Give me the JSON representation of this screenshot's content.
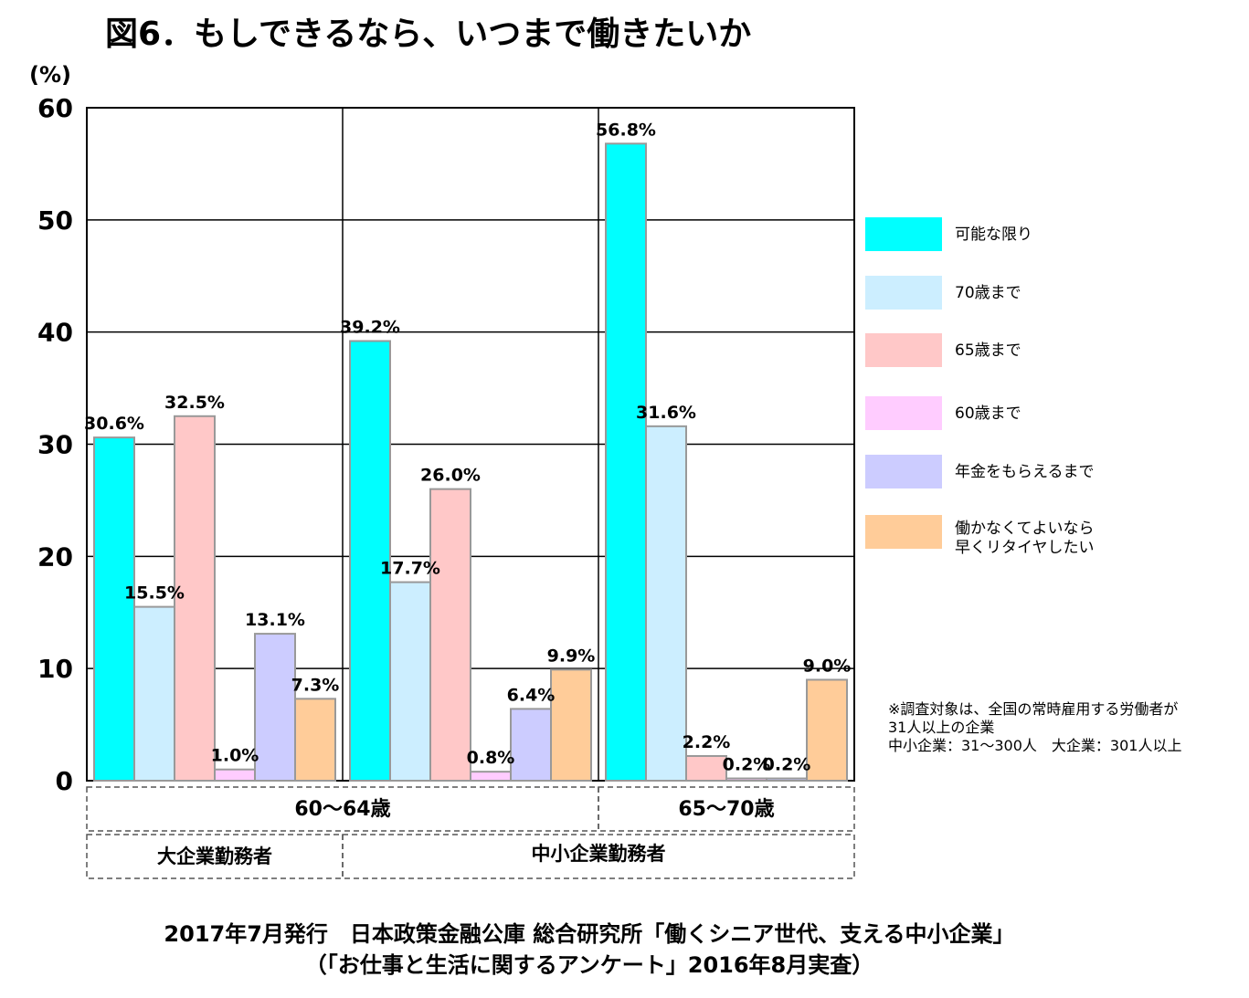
{
  "title": "図6．もしできるなら、いつまで働きたいか",
  "chart_data": {
    "type": "bar",
    "yunit": "(%)",
    "ylim": [
      0,
      60
    ],
    "yticks": [
      0,
      10,
      20,
      30,
      40,
      50,
      60
    ],
    "grid": true,
    "legend_position": "right",
    "categories": [
      "大企業勤務者 60～64歳",
      "中小企業勤務者 60～64歳",
      "中小企業勤務者 65～70歳"
    ],
    "age_groups": [
      "60～64歳",
      "65～70歳"
    ],
    "company_groups": [
      "大企業勤務者",
      "中小企業勤務者"
    ],
    "series": [
      {
        "name": "可能な限り",
        "color": "#00FFFF",
        "values": [
          30.6,
          39.2,
          56.8
        ],
        "labels": [
          "30.6%",
          "39.2%",
          "56.8%"
        ]
      },
      {
        "name": "70歳まで",
        "color": "#CCEEFF",
        "values": [
          15.5,
          17.7,
          31.6
        ],
        "labels": [
          "15.5%",
          "17.7%",
          "31.6%"
        ]
      },
      {
        "name": "65歳まで",
        "color": "#FFC8C8",
        "values": [
          32.5,
          26.0,
          2.2
        ],
        "labels": [
          "32.5%",
          "26.0%",
          "2.2%"
        ]
      },
      {
        "name": "60歳まで",
        "color": "#FFCCFF",
        "values": [
          1.0,
          0.8,
          0.2
        ],
        "labels": [
          "1.0%",
          "0.8%",
          "0.2%"
        ]
      },
      {
        "name": "年金をもらえるまで",
        "color": "#CCCCFF",
        "values": [
          13.1,
          6.4,
          0.2
        ],
        "labels": [
          "13.1%",
          "6.4%",
          "0.2%"
        ]
      },
      {
        "name": "働かなくてよいなら\n早くリタイヤしたい",
        "color": "#FFCC99",
        "values": [
          7.3,
          9.9,
          9.0
        ],
        "labels": [
          "7.3%",
          "9.9%",
          "9.0%"
        ]
      }
    ]
  },
  "note": "※調査対象は、全国の常時雇用する労働者が\n31人以上の企業\n中小企業：31～300人　大企業：301人以上",
  "footer": "2017年7月発行　日本政策金融公庫 総合研究所「働くシニア世代、支える中小企業」\n（「お仕事と生活に関するアンケート」2016年8月実査）"
}
